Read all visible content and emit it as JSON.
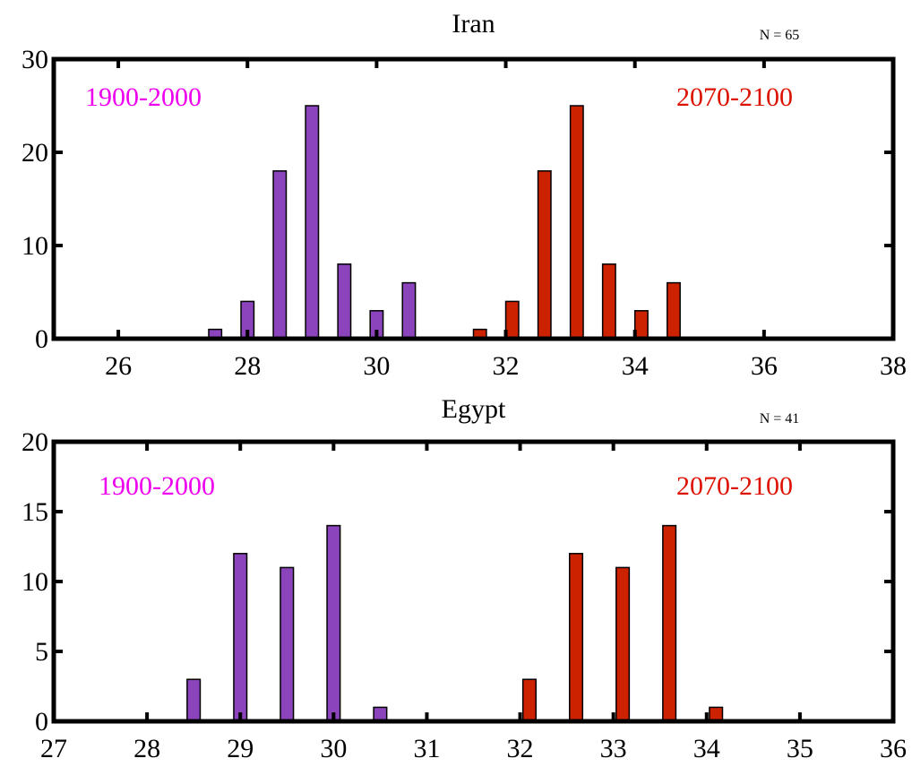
{
  "colors": {
    "period1": "#8b44bb",
    "period2": "#cc2200",
    "label1": "#ee00ee",
    "label2": "#dd1100",
    "axis": "#000000"
  },
  "chart_data": [
    {
      "type": "bar",
      "title": "Iran",
      "n_label": "N = 65",
      "xlabel": "",
      "ylabel": "",
      "xlim": [
        25,
        38
      ],
      "ylim": [
        0,
        30
      ],
      "xticks": [
        26,
        28,
        30,
        32,
        34,
        36,
        38
      ],
      "yticks": [
        0,
        10,
        20,
        30
      ],
      "bar_width": 0.2,
      "series": [
        {
          "name": "1900-2000",
          "x": [
            27.5,
            28.0,
            28.5,
            29.0,
            29.5,
            30.0,
            30.5
          ],
          "values": [
            1,
            4,
            18,
            25,
            8,
            3,
            6
          ]
        },
        {
          "name": "2070-2100",
          "x": [
            31.6,
            32.1,
            32.6,
            33.1,
            33.6,
            34.1,
            34.6
          ],
          "values": [
            1,
            4,
            18,
            25,
            8,
            3,
            6
          ]
        }
      ]
    },
    {
      "type": "bar",
      "title": "Egypt",
      "n_label": "N = 41",
      "xlabel": "",
      "ylabel": "",
      "xlim": [
        27,
        36
      ],
      "ylim": [
        0,
        20
      ],
      "xticks": [
        27,
        28,
        29,
        30,
        31,
        32,
        33,
        34,
        35,
        36
      ],
      "yticks": [
        0,
        5,
        10,
        15,
        20
      ],
      "bar_width": 0.14,
      "series": [
        {
          "name": "1900-2000",
          "x": [
            28.5,
            29.0,
            29.5,
            30.0,
            30.5
          ],
          "values": [
            3,
            12,
            11,
            14,
            1
          ]
        },
        {
          "name": "2070-2100",
          "x": [
            32.1,
            32.6,
            33.1,
            33.6,
            34.1
          ],
          "values": [
            3,
            12,
            11,
            14,
            1
          ]
        }
      ]
    }
  ]
}
